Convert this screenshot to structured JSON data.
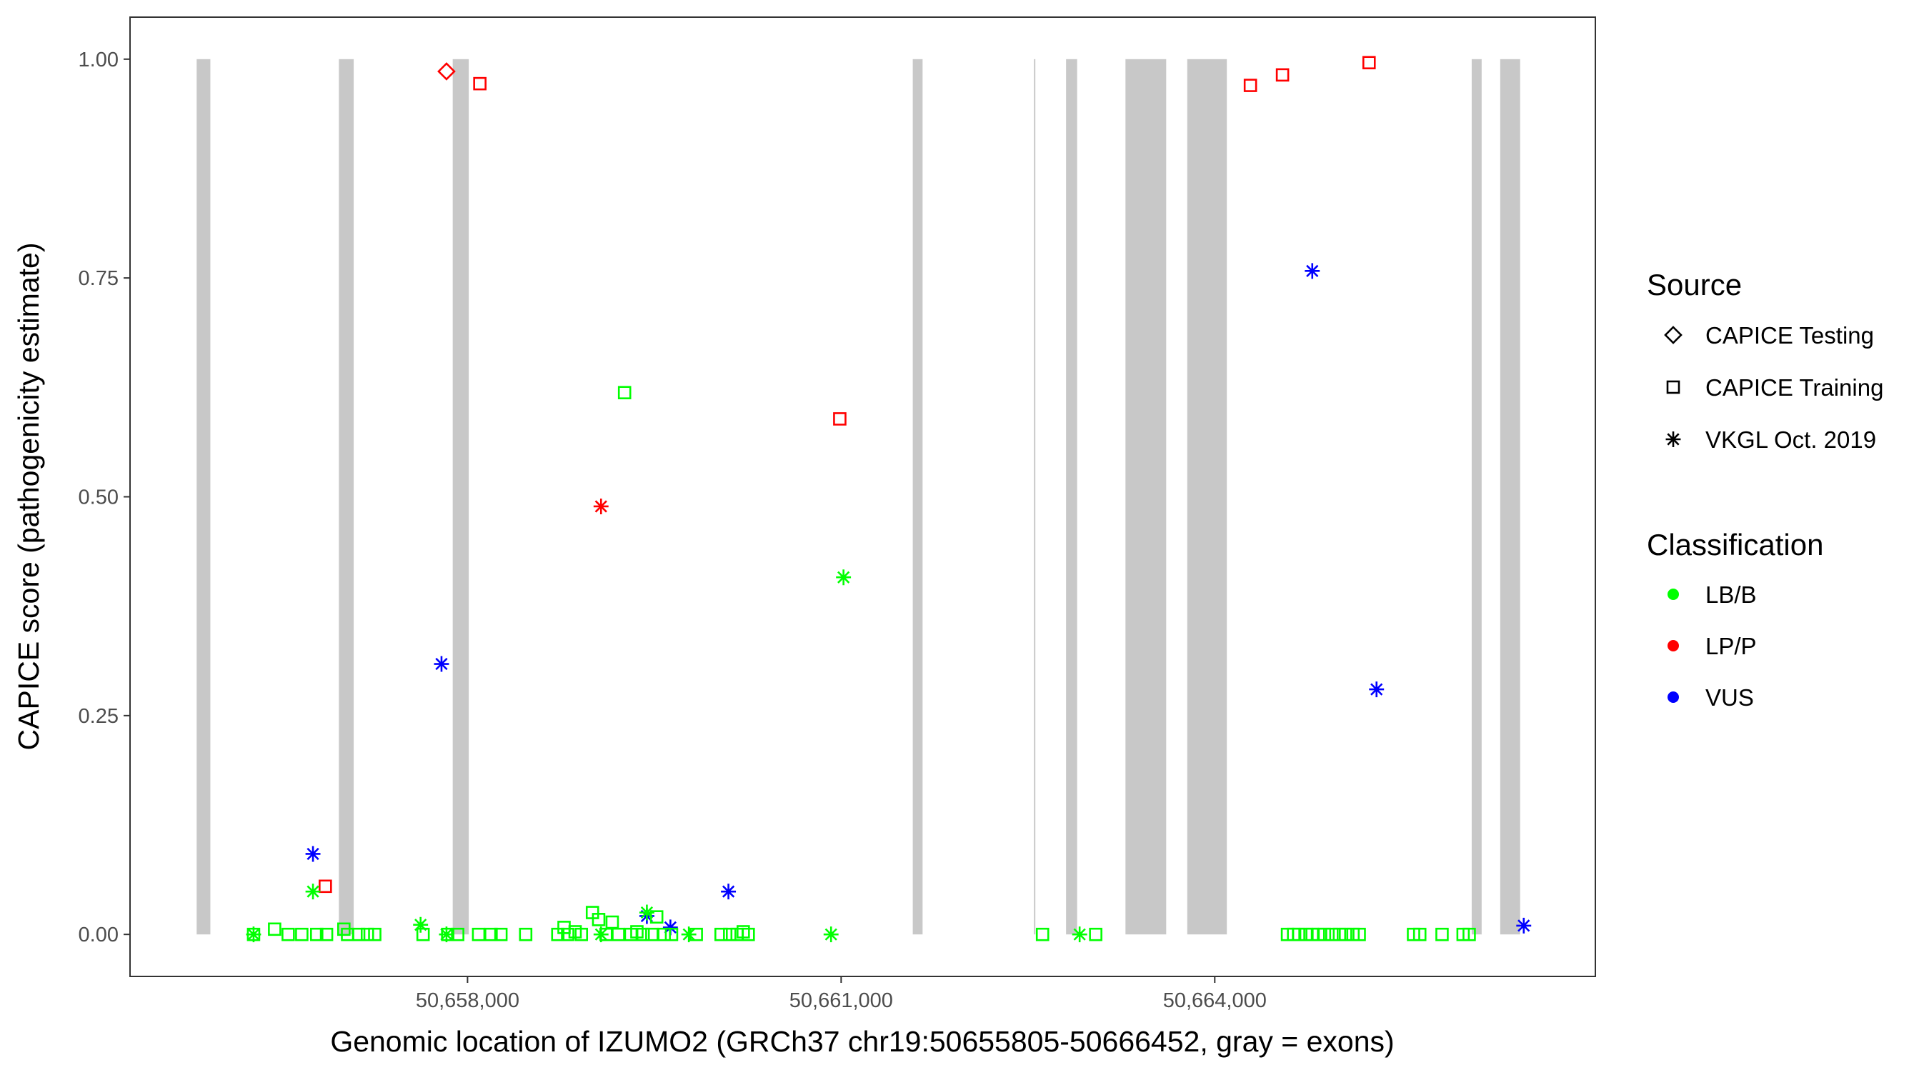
{
  "chart_data": {
    "type": "scatter",
    "title": "",
    "xlabel": "Genomic location of IZUMO2 (GRCh37 chr19:50655805-50666452, gray = exons)",
    "ylabel": "CAPICE score (pathogenicity estimate)",
    "xlim": [
      50655290,
      50667056
    ],
    "ylim": [
      -0.048,
      1.048
    ],
    "x_ticks": [
      50658000,
      50661000,
      50664000
    ],
    "x_tick_labels": [
      "50,658,000",
      "50,661,000",
      "50,664,000"
    ],
    "y_ticks": [
      0,
      0.25,
      0.5,
      0.75,
      1.0
    ],
    "y_tick_labels": [
      "0.00",
      "0.25",
      "0.50",
      "0.75",
      "1.00"
    ],
    "grid": false,
    "exon_color": "#c8c8c8",
    "exons": [
      [
        50655825,
        50655935
      ],
      [
        50656967,
        50657086
      ],
      [
        50657881,
        50658010
      ],
      [
        50661575,
        50661654
      ],
      [
        50662548,
        50662558
      ],
      [
        50662806,
        50662895
      ],
      [
        50663283,
        50663610
      ],
      [
        50663779,
        50664097
      ],
      [
        50666063,
        50666143
      ],
      [
        50666292,
        50666452
      ]
    ],
    "legend": {
      "placement": "right",
      "source_title": "Source",
      "sources": [
        {
          "name": "CAPICE Testing",
          "shape": "diamond"
        },
        {
          "name": "CAPICE Training",
          "shape": "square"
        },
        {
          "name": "VKGL Oct. 2019",
          "shape": "asterisk"
        }
      ],
      "class_title": "Classification",
      "classes": [
        {
          "name": "LB/B",
          "color": "#00ff00"
        },
        {
          "name": "LP/P",
          "color": "#ff0000"
        },
        {
          "name": "VUS",
          "color": "#0000ff"
        }
      ]
    },
    "series": [
      {
        "source": "CAPICE Testing",
        "class": "LP/P",
        "points": [
          [
            50657831,
            0.986
          ]
        ]
      },
      {
        "source": "CAPICE Training",
        "class": "LP/P",
        "points": [
          [
            50658099,
            0.972
          ],
          [
            50656858,
            0.055
          ],
          [
            50660989,
            0.589
          ],
          [
            50664286,
            0.97
          ],
          [
            50664544,
            0.982
          ],
          [
            50665239,
            0.996
          ]
        ]
      },
      {
        "source": "VKGL Oct. 2019",
        "class": "LP/P",
        "points": [
          [
            50659072,
            0.489
          ]
        ]
      },
      {
        "source": "VKGL Oct. 2019",
        "class": "VUS",
        "points": [
          [
            50656759,
            0.092
          ],
          [
            50657791,
            0.309
          ],
          [
            50659440,
            0.021
          ],
          [
            50659629,
            0.008
          ],
          [
            50660095,
            0.049
          ],
          [
            50664783,
            0.758
          ],
          [
            50665299,
            0.28
          ],
          [
            50666481,
            0.01
          ]
        ]
      },
      {
        "source": "VKGL Oct. 2019",
        "class": "LB/B",
        "points": [
          [
            50656282,
            0
          ],
          [
            50656759,
            0.049
          ],
          [
            50657623,
            0.011
          ],
          [
            50657831,
            0
          ],
          [
            50659072,
            0
          ],
          [
            50659440,
            0.025
          ],
          [
            50659777,
            0
          ],
          [
            50660919,
            0
          ],
          [
            50661019,
            0.408
          ],
          [
            50662915,
            0
          ]
        ]
      },
      {
        "source": "CAPICE Training",
        "class": "LB/B",
        "points": [
          [
            50656282,
            0
          ],
          [
            50656451,
            0.006
          ],
          [
            50656560,
            0
          ],
          [
            50656669,
            0
          ],
          [
            50656789,
            0
          ],
          [
            50656868,
            0
          ],
          [
            50657007,
            0.006
          ],
          [
            50657037,
            0
          ],
          [
            50657126,
            0
          ],
          [
            50657196,
            0
          ],
          [
            50657255,
            0
          ],
          [
            50657643,
            0
          ],
          [
            50657841,
            0
          ],
          [
            50657921,
            0
          ],
          [
            50658089,
            0
          ],
          [
            50658189,
            0
          ],
          [
            50658268,
            0
          ],
          [
            50658467,
            0
          ],
          [
            50658725,
            0
          ],
          [
            50658775,
            0.008
          ],
          [
            50658804,
            0
          ],
          [
            50658864,
            0.003
          ],
          [
            50658914,
            0
          ],
          [
            50659003,
            0.025
          ],
          [
            50659053,
            0.017
          ],
          [
            50659112,
            0
          ],
          [
            50659162,
            0.014
          ],
          [
            50659211,
            0
          ],
          [
            50659261,
            0.619
          ],
          [
            50659311,
            0
          ],
          [
            50659360,
            0.003
          ],
          [
            50659410,
            0
          ],
          [
            50659480,
            0
          ],
          [
            50659519,
            0.02
          ],
          [
            50659579,
            0
          ],
          [
            50659638,
            0
          ],
          [
            50659837,
            0
          ],
          [
            50660036,
            0
          ],
          [
            50660105,
            0
          ],
          [
            50660165,
            0
          ],
          [
            50660214,
            0.003
          ],
          [
            50660254,
            0
          ],
          [
            50662617,
            0
          ],
          [
            50663044,
            0
          ],
          [
            50664584,
            0
          ],
          [
            50664633,
            0
          ],
          [
            50664673,
            0
          ],
          [
            50664733,
            0
          ],
          [
            50664782,
            0
          ],
          [
            50664832,
            0
          ],
          [
            50664881,
            0
          ],
          [
            50664941,
            0
          ],
          [
            50665001,
            0
          ],
          [
            50665050,
            0
          ],
          [
            50665110,
            0
          ],
          [
            50665160,
            0
          ],
          [
            50665596,
            0
          ],
          [
            50665646,
            0
          ],
          [
            50665825,
            0
          ],
          [
            50665994,
            0
          ],
          [
            50666043,
            0
          ]
        ]
      }
    ]
  }
}
